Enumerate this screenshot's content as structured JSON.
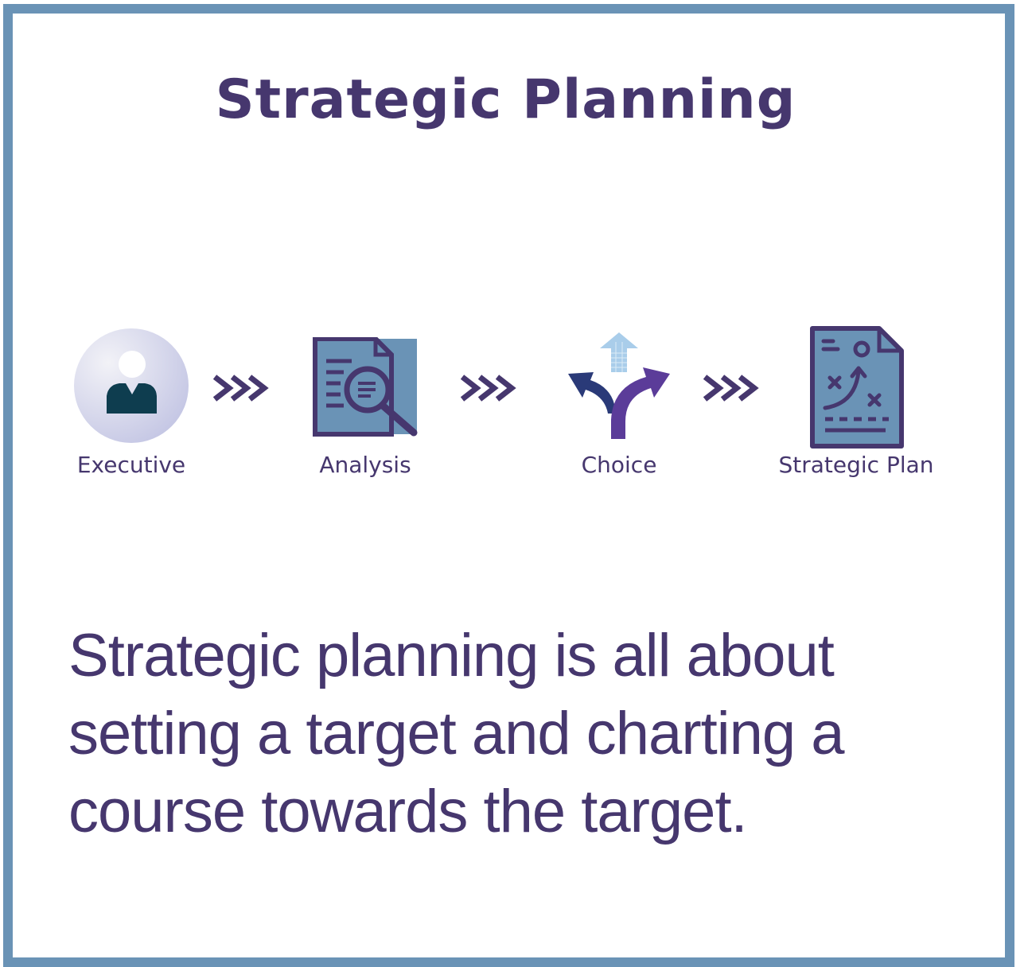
{
  "title": "Strategic Planning",
  "flow": {
    "steps": [
      {
        "label": "Executive",
        "icon": "executive-person-icon"
      },
      {
        "label": "Analysis",
        "icon": "analysis-document-magnifier-icon"
      },
      {
        "label": "Choice",
        "icon": "choice-fork-arrows-icon"
      },
      {
        "label": "Strategic Plan",
        "icon": "strategic-plan-document-icon"
      }
    ],
    "connector_icon": "triple-chevron-right-icon"
  },
  "description": "Strategic planning is all about setting a target and charting a course towards the target.",
  "colors": {
    "frame": "#6a93b6",
    "text": "#46376e",
    "icon_fill": "#6a93b6",
    "icon_dark": "#46376e",
    "choice_left_arrow": "#2a3a78",
    "choice_right_arrow": "#5b3c99",
    "choice_up_arrow": "#a9cdea"
  }
}
